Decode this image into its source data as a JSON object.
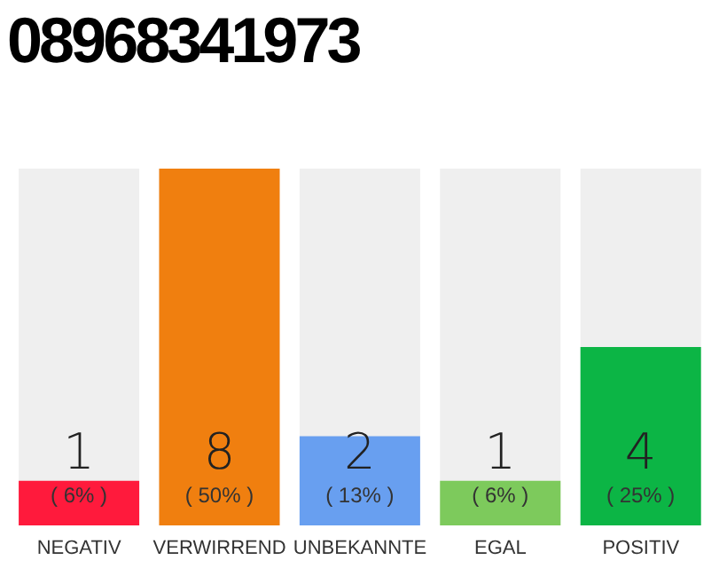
{
  "chart_data": {
    "type": "bar",
    "title": "08968341973",
    "categories": [
      "NEGATIV",
      "VERWIRREND",
      "UNBEKANNTE",
      "EGAL",
      "POSITIV"
    ],
    "values": [
      1,
      8,
      2,
      1,
      4
    ],
    "colors": [
      "#ff1a3c",
      "#f07f0f",
      "#689ff0",
      "#7dca5c",
      "#0cb545"
    ],
    "annotations": [
      "( 6% )",
      "( 50% )",
      "( 13% )",
      "( 6% )",
      "( 25% )"
    ],
    "data_labels": true,
    "tick_labels": "x"
  }
}
